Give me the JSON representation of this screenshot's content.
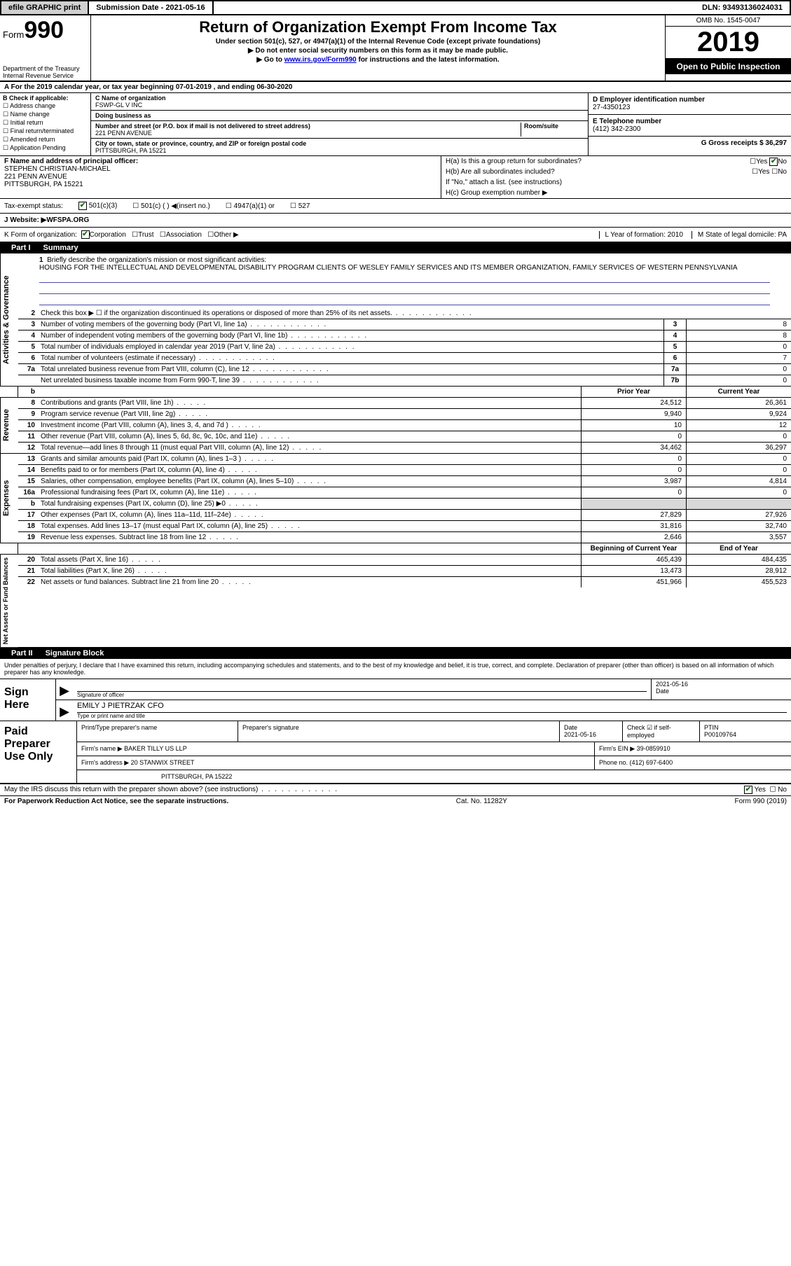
{
  "topbar": {
    "efile": "efile GRAPHIC print",
    "submission": "Submission Date - 2021-05-16",
    "dln": "DLN: 93493136024031"
  },
  "header": {
    "form_word": "Form",
    "form_num": "990",
    "dept": "Department of the Treasury\nInternal Revenue Service",
    "title": "Return of Organization Exempt From Income Tax",
    "subtitle": "Under section 501(c), 527, or 4947(a)(1) of the Internal Revenue Code (except private foundations)",
    "note1": "Do not enter social security numbers on this form as it may be made public.",
    "note2_pre": "Go to ",
    "note2_link": "www.irs.gov/Form990",
    "note2_post": " for instructions and the latest information.",
    "omb": "OMB No. 1545-0047",
    "year": "2019",
    "inspection": "Open to Public Inspection"
  },
  "period": "A For the 2019 calendar year, or tax year beginning 07-01-2019    , and ending 06-30-2020",
  "box_b": {
    "title": "B Check if applicable:",
    "items": [
      "Address change",
      "Name change",
      "Initial return",
      "Final return/terminated",
      "Amended return",
      "Application Pending"
    ]
  },
  "box_c": {
    "name_lbl": "C Name of organization",
    "name": "FSWP-GL V INC",
    "dba_lbl": "Doing business as",
    "addr_lbl": "Number and street (or P.O. box if mail is not delivered to street address)",
    "room_lbl": "Room/suite",
    "addr": "221 PENN AVENUE",
    "city_lbl": "City or town, state or province, country, and ZIP or foreign postal code",
    "city": "PITTSBURGH, PA  15221"
  },
  "box_d": {
    "ein_lbl": "D Employer identification number",
    "ein": "27-4350123",
    "phone_lbl": "E Telephone number",
    "phone": "(412) 342-2300",
    "gross_lbl": "G Gross receipts $ 36,297"
  },
  "officer": {
    "lbl": "F  Name and address of principal officer:",
    "name": "STEPHEN CHRISTIAN-MICHAEL",
    "addr1": "221 PENN AVENUE",
    "addr2": "PITTSBURGH, PA  15221"
  },
  "box_h": {
    "a": "H(a)  Is this a group return for subordinates?",
    "b": "H(b)  Are all subordinates included?",
    "bnote": "If \"No,\" attach a list. (see instructions)",
    "c": "H(c)  Group exemption number ▶",
    "yes": "Yes",
    "no": "No"
  },
  "tax": {
    "lbl": "Tax-exempt status:",
    "i1": "501(c)(3)",
    "i2": "501(c) (   ) ◀(insert no.)",
    "i3": "4947(a)(1) or",
    "i4": "527"
  },
  "website": {
    "lbl": "J    Website: ▶",
    "val": "  WFSPA.ORG"
  },
  "kform": {
    "lbl": "K Form of organization:",
    "i1": "Corporation",
    "i2": "Trust",
    "i3": "Association",
    "i4": "Other ▶",
    "l": "L Year of formation: 2010",
    "m": "M State of legal domicile: PA"
  },
  "part1": {
    "num": "Part I",
    "title": "Summary"
  },
  "mission": {
    "num": "1",
    "lbl": "Briefly describe the organization's mission or most significant activities:",
    "text": "HOUSING FOR THE INTELLECTUAL AND DEVELOPMENTAL DISABILITY PROGRAM CLIENTS OF WESLEY FAMILY SERVICES AND ITS MEMBER ORGANIZATION, FAMILY SERVICES OF WESTERN PENNSYLVANIA"
  },
  "activities_lines": [
    {
      "n": "2",
      "t": "Check this box ▶ ☐  if the organization discontinued its operations or disposed of more than 25% of its net assets.",
      "box": "",
      "val": ""
    },
    {
      "n": "3",
      "t": "Number of voting members of the governing body (Part VI, line 1a)",
      "box": "3",
      "val": "8"
    },
    {
      "n": "4",
      "t": "Number of independent voting members of the governing body (Part VI, line 1b)",
      "box": "4",
      "val": "8"
    },
    {
      "n": "5",
      "t": "Total number of individuals employed in calendar year 2019 (Part V, line 2a)",
      "box": "5",
      "val": "0"
    },
    {
      "n": "6",
      "t": "Total number of volunteers (estimate if necessary)",
      "box": "6",
      "val": "7"
    },
    {
      "n": "7a",
      "t": "Total unrelated business revenue from Part VIII, column (C), line 12",
      "box": "7a",
      "val": "0"
    },
    {
      "n": "",
      "t": "Net unrelated business taxable income from Form 990-T, line 39",
      "box": "7b",
      "val": "0"
    }
  ],
  "col_headers": {
    "b_lbl": "b",
    "prior": "Prior Year",
    "current": "Current Year"
  },
  "revenue_lines": [
    {
      "n": "8",
      "t": "Contributions and grants (Part VIII, line 1h)",
      "p": "24,512",
      "c": "26,361"
    },
    {
      "n": "9",
      "t": "Program service revenue (Part VIII, line 2g)",
      "p": "9,940",
      "c": "9,924"
    },
    {
      "n": "10",
      "t": "Investment income (Part VIII, column (A), lines 3, 4, and 7d )",
      "p": "10",
      "c": "12"
    },
    {
      "n": "11",
      "t": "Other revenue (Part VIII, column (A), lines 5, 6d, 8c, 9c, 10c, and 11e)",
      "p": "0",
      "c": "0"
    },
    {
      "n": "12",
      "t": "Total revenue—add lines 8 through 11 (must equal Part VIII, column (A), line 12)",
      "p": "34,462",
      "c": "36,297"
    }
  ],
  "expense_lines": [
    {
      "n": "13",
      "t": "Grants and similar amounts paid (Part IX, column (A), lines 1–3 )",
      "p": "0",
      "c": "0"
    },
    {
      "n": "14",
      "t": "Benefits paid to or for members (Part IX, column (A), line 4)",
      "p": "0",
      "c": "0"
    },
    {
      "n": "15",
      "t": "Salaries, other compensation, employee benefits (Part IX, column (A), lines 5–10)",
      "p": "3,987",
      "c": "4,814"
    },
    {
      "n": "16a",
      "t": "Professional fundraising fees (Part IX, column (A), line 11e)",
      "p": "0",
      "c": "0"
    },
    {
      "n": "b",
      "t": "Total fundraising expenses (Part IX, column (D), line 25) ▶0",
      "p": "",
      "c": "",
      "shaded": true
    },
    {
      "n": "17",
      "t": "Other expenses (Part IX, column (A), lines 11a–11d, 11f–24e)",
      "p": "27,829",
      "c": "27,926"
    },
    {
      "n": "18",
      "t": "Total expenses. Add lines 13–17 (must equal Part IX, column (A), line 25)",
      "p": "31,816",
      "c": "32,740"
    },
    {
      "n": "19",
      "t": "Revenue less expenses. Subtract line 18 from line 12",
      "p": "2,646",
      "c": "3,557"
    }
  ],
  "net_headers": {
    "begin": "Beginning of Current Year",
    "end": "End of Year"
  },
  "net_lines": [
    {
      "n": "20",
      "t": "Total assets (Part X, line 16)",
      "p": "465,439",
      "c": "484,435"
    },
    {
      "n": "21",
      "t": "Total liabilities (Part X, line 26)",
      "p": "13,473",
      "c": "28,912"
    },
    {
      "n": "22",
      "t": "Net assets or fund balances. Subtract line 21 from line 20",
      "p": "451,966",
      "c": "455,523"
    }
  ],
  "part2": {
    "num": "Part II",
    "title": "Signature Block"
  },
  "sig_decl": "Under penalties of perjury, I declare that I have examined this return, including accompanying schedules and statements, and to the best of my knowledge and belief, it is true, correct, and complete. Declaration of preparer (other than officer) is based on all information of which preparer has any knowledge.",
  "sign": {
    "here": "Sign Here",
    "sig_lbl": "Signature of officer",
    "date_lbl": "Date",
    "date": "2021-05-16",
    "name": "EMILY J PIETRZAK  CFO",
    "name_lbl": "Type or print name and title"
  },
  "paid": {
    "lbl": "Paid Preparer Use Only",
    "r1": {
      "c1": "Print/Type preparer's name",
      "c2": "Preparer's signature",
      "c3": "Date\n2021-05-16",
      "c4": "Check ☑ if self-employed",
      "c5": "PTIN\nP00109764"
    },
    "r2": {
      "c1": "Firm's name    ▶ BAKER TILLY US LLP",
      "c2": "Firm's EIN ▶ 39-0859910"
    },
    "r3": {
      "c1": "Firm's address ▶ 20 STANWIX STREET",
      "c2": "Phone no. (412) 697-6400"
    },
    "r4": {
      "c1": "PITTSBURGH, PA  15222"
    }
  },
  "irs_discuss": "May the IRS discuss this return with the preparer shown above? (see instructions)",
  "footer": {
    "left": "For Paperwork Reduction Act Notice, see the separate instructions.",
    "mid": "Cat. No. 11282Y",
    "right": "Form 990 (2019)"
  },
  "side_labels": {
    "activities": "Activities & Governance",
    "revenue": "Revenue",
    "expenses": "Expenses",
    "net": "Net Assets or Fund Balances"
  }
}
